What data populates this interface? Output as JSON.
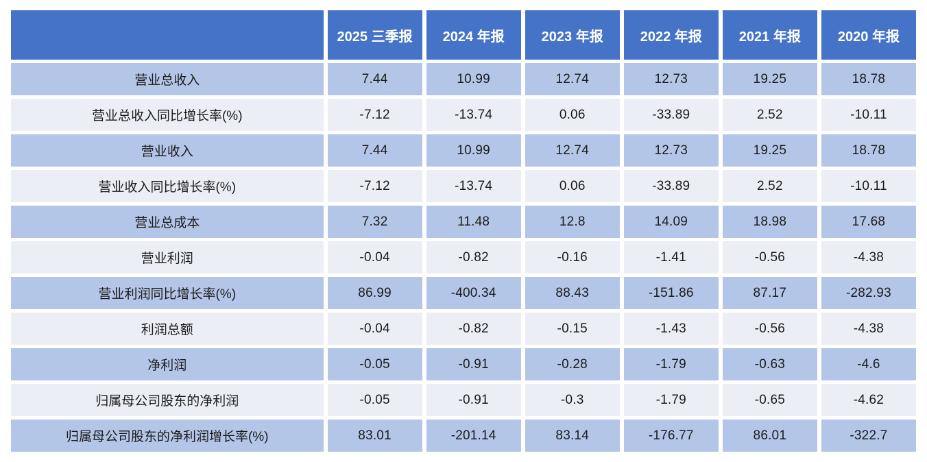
{
  "chart_data": {
    "type": "table",
    "title": "",
    "columns": [
      "",
      "2025 三季报",
      "2024 年报",
      "2023 年报",
      "2022 年报",
      "2021 年报",
      "2020 年报"
    ],
    "rows": [
      {
        "label": "营业总收入",
        "values": [
          "7.44",
          "10.99",
          "12.74",
          "12.73",
          "19.25",
          "18.78"
        ]
      },
      {
        "label": "营业总收入同比增长率(%)",
        "values": [
          "-7.12",
          "-13.74",
          "0.06",
          "-33.89",
          "2.52",
          "-10.11"
        ]
      },
      {
        "label": "营业收入",
        "values": [
          "7.44",
          "10.99",
          "12.74",
          "12.73",
          "19.25",
          "18.78"
        ]
      },
      {
        "label": "营业收入同比增长率(%)",
        "values": [
          "-7.12",
          "-13.74",
          "0.06",
          "-33.89",
          "2.52",
          "-10.11"
        ]
      },
      {
        "label": "营业总成本",
        "values": [
          "7.32",
          "11.48",
          "12.8",
          "14.09",
          "18.98",
          "17.68"
        ]
      },
      {
        "label": "营业利润",
        "values": [
          "-0.04",
          "-0.82",
          "-0.16",
          "-1.41",
          "-0.56",
          "-4.38"
        ]
      },
      {
        "label": "营业利润同比增长率(%)",
        "values": [
          "86.99",
          "-400.34",
          "88.43",
          "-151.86",
          "87.17",
          "-282.93"
        ]
      },
      {
        "label": "利润总额",
        "values": [
          "-0.04",
          "-0.82",
          "-0.15",
          "-1.43",
          "-0.56",
          "-4.38"
        ]
      },
      {
        "label": "净利润",
        "values": [
          "-0.05",
          "-0.91",
          "-0.28",
          "-1.79",
          "-0.63",
          "-4.6"
        ]
      },
      {
        "label": "归属母公司股东的净利润",
        "values": [
          "-0.05",
          "-0.91",
          "-0.3",
          "-1.79",
          "-0.65",
          "-4.62"
        ]
      },
      {
        "label": "归属母公司股东的净利润增长率(%)",
        "values": [
          "83.01",
          "-201.14",
          "83.14",
          "-176.77",
          "86.01",
          "-322.7"
        ]
      }
    ],
    "colors": {
      "header_bg": "#4573C7",
      "row_blue": "#B4C6E7",
      "row_light": "#ECEEF6",
      "header_text": "#FFFFFF",
      "body_text": "#1B1B1B",
      "page_bg": "#FFFFFF"
    },
    "layout": {
      "banding": "odd rows blue, even rows light",
      "grid": "white gutters between cells",
      "alignment": "center"
    }
  }
}
